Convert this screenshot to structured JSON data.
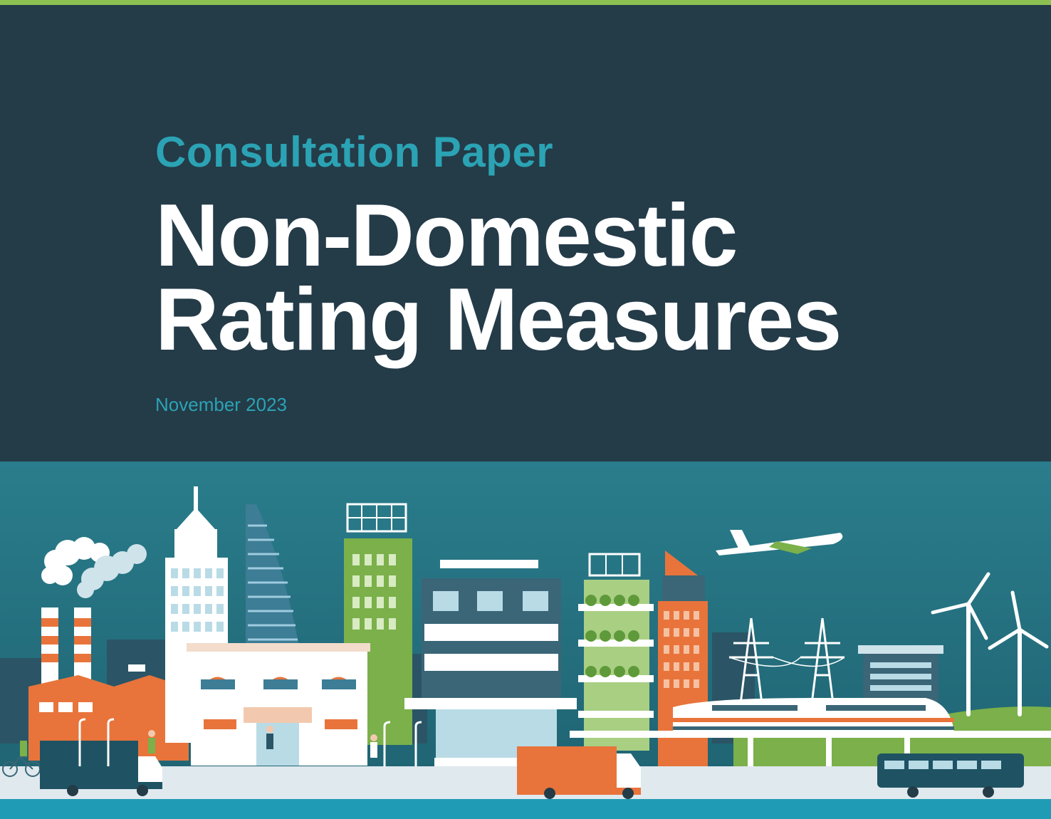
{
  "cover": {
    "eyebrow": "Consultation Paper",
    "title_line1": "Non-Domestic",
    "title_line2": "Rating Measures",
    "date": "November 2023"
  },
  "colors": {
    "background": "#243b48",
    "accent_teal": "#2ba3b4",
    "top_bar": "#8cc152",
    "sky": "#1f6f7e",
    "road": "#dfe9ee",
    "bottom_strip": "#1f9bb5",
    "orange": "#e8743b",
    "green": "#7bb04a"
  },
  "illustration": {
    "name": "city-skyline-illustration"
  }
}
